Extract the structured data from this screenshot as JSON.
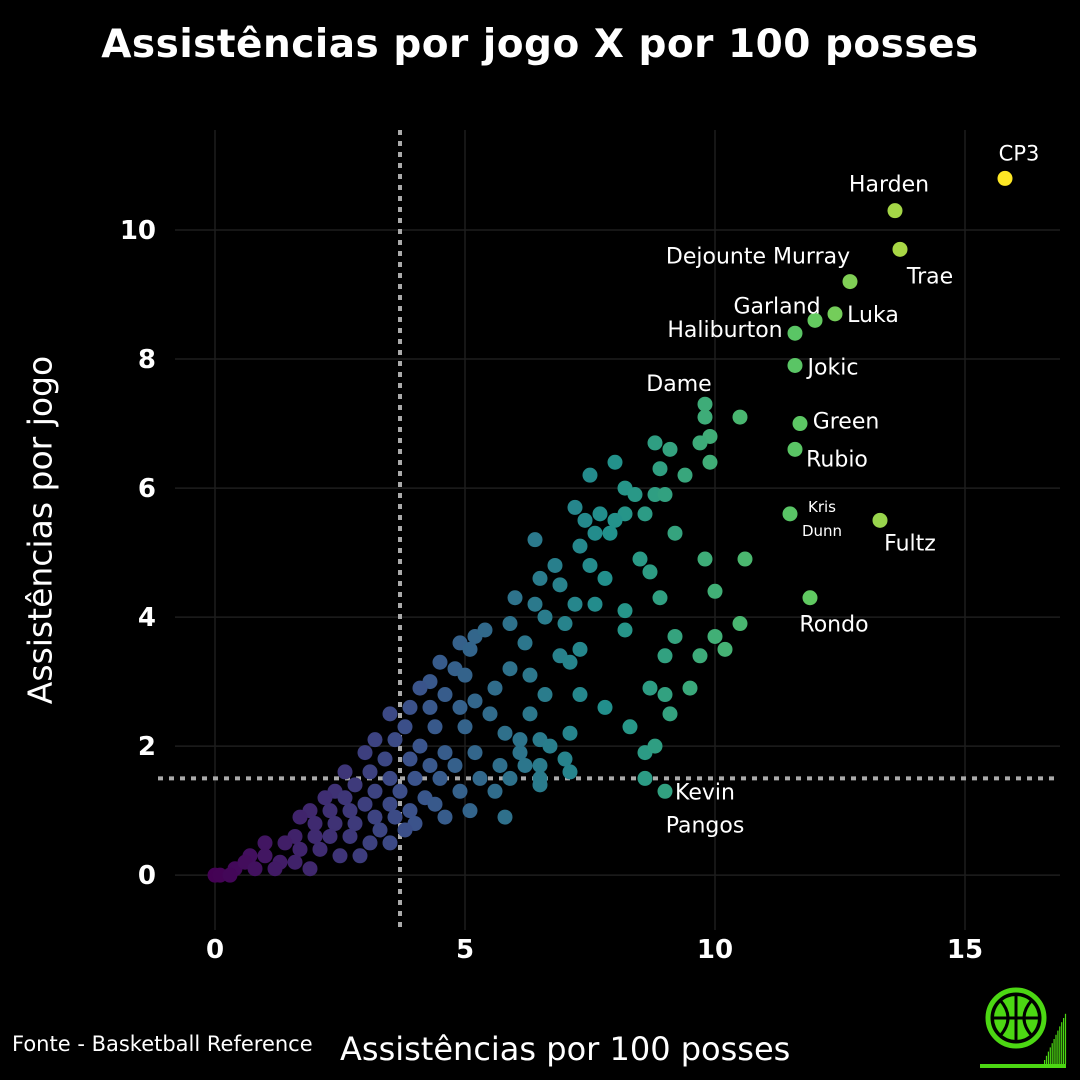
{
  "chart_data": {
    "type": "scatter",
    "title": "Assistências por jogo X por 100 posses",
    "xlabel": "Assistências por 100 posses",
    "ylabel": "Assistências por jogo",
    "xlim": [
      -0.8,
      16.9
    ],
    "ylim": [
      -0.85,
      11.55
    ],
    "x_ticks": [
      0,
      5,
      10,
      15
    ],
    "y_ticks": [
      0,
      2,
      4,
      6,
      8,
      10
    ],
    "grid": true,
    "reference_lines": {
      "x": 3.7,
      "y": 1.5
    },
    "color_scale": [
      "#440154",
      "#3b528b",
      "#21918c",
      "#5ec962",
      "#fde725"
    ],
    "labeled_points": [
      {
        "name": "CP3",
        "x": 15.8,
        "y": 10.8
      },
      {
        "name": "Harden",
        "x": 13.6,
        "y": 10.3
      },
      {
        "name": "Trae",
        "x": 13.7,
        "y": 9.7
      },
      {
        "name": "Dejounte Murray",
        "x": 12.7,
        "y": 9.2
      },
      {
        "name": "Luka",
        "x": 12.4,
        "y": 8.7
      },
      {
        "name": "Garland",
        "x": 12.0,
        "y": 8.6
      },
      {
        "name": "Haliburton",
        "x": 11.6,
        "y": 8.4
      },
      {
        "name": "Jokic",
        "x": 11.6,
        "y": 7.9
      },
      {
        "name": "Dame",
        "x": 9.8,
        "y": 7.3
      },
      {
        "name": "Green",
        "x": 11.7,
        "y": 7.0
      },
      {
        "name": "Rubio",
        "x": 11.6,
        "y": 6.6
      },
      {
        "name": "Kris Dunn",
        "x": 11.5,
        "y": 5.6
      },
      {
        "name": "Fultz",
        "x": 13.3,
        "y": 5.5
      },
      {
        "name": "Rondo",
        "x": 11.9,
        "y": 4.3
      },
      {
        "name": "Kevin Pangos",
        "x": 9.0,
        "y": 1.3
      }
    ],
    "other_points": [
      [
        9.8,
        7.1
      ],
      [
        10.5,
        7.1
      ],
      [
        9.9,
        6.8
      ],
      [
        9.7,
        6.7
      ],
      [
        8.8,
        6.7
      ],
      [
        9.1,
        6.6
      ],
      [
        8.0,
        6.4
      ],
      [
        9.9,
        6.4
      ],
      [
        8.9,
        6.3
      ],
      [
        9.4,
        6.2
      ],
      [
        7.5,
        6.2
      ],
      [
        8.2,
        6.0
      ],
      [
        8.4,
        5.9
      ],
      [
        8.8,
        5.9
      ],
      [
        9.0,
        5.9
      ],
      [
        7.2,
        5.7
      ],
      [
        7.7,
        5.6
      ],
      [
        8.2,
        5.6
      ],
      [
        8.6,
        5.6
      ],
      [
        7.4,
        5.5
      ],
      [
        8.0,
        5.5
      ],
      [
        7.9,
        5.3
      ],
      [
        7.6,
        5.3
      ],
      [
        7.3,
        5.1
      ],
      [
        6.4,
        5.2
      ],
      [
        9.2,
        5.3
      ],
      [
        6.8,
        4.8
      ],
      [
        8.5,
        4.9
      ],
      [
        7.5,
        4.8
      ],
      [
        8.7,
        4.7
      ],
      [
        9.8,
        4.9
      ],
      [
        10.6,
        4.9
      ],
      [
        6.5,
        4.6
      ],
      [
        6.9,
        4.5
      ],
      [
        7.8,
        4.6
      ],
      [
        6.0,
        4.3
      ],
      [
        6.4,
        4.2
      ],
      [
        7.2,
        4.2
      ],
      [
        7.6,
        4.2
      ],
      [
        8.2,
        4.1
      ],
      [
        8.9,
        4.3
      ],
      [
        10.0,
        4.4
      ],
      [
        5.9,
        3.9
      ],
      [
        6.6,
        4.0
      ],
      [
        7.0,
        3.9
      ],
      [
        8.2,
        3.8
      ],
      [
        5.2,
        3.7
      ],
      [
        5.4,
        3.8
      ],
      [
        4.9,
        3.6
      ],
      [
        5.1,
        3.5
      ],
      [
        6.2,
        3.6
      ],
      [
        6.9,
        3.4
      ],
      [
        7.3,
        3.5
      ],
      [
        9.2,
        3.7
      ],
      [
        10.0,
        3.7
      ],
      [
        10.2,
        3.5
      ],
      [
        10.5,
        3.9
      ],
      [
        4.5,
        3.3
      ],
      [
        4.8,
        3.2
      ],
      [
        5.0,
        3.1
      ],
      [
        5.9,
        3.2
      ],
      [
        6.3,
        3.1
      ],
      [
        7.1,
        3.3
      ],
      [
        9.0,
        3.4
      ],
      [
        9.7,
        3.4
      ],
      [
        4.3,
        3.0
      ],
      [
        4.1,
        2.9
      ],
      [
        4.6,
        2.8
      ],
      [
        5.2,
        2.7
      ],
      [
        5.6,
        2.9
      ],
      [
        6.6,
        2.8
      ],
      [
        7.3,
        2.8
      ],
      [
        8.7,
        2.9
      ],
      [
        9.0,
        2.8
      ],
      [
        9.5,
        2.9
      ],
      [
        3.9,
        2.6
      ],
      [
        4.3,
        2.6
      ],
      [
        4.9,
        2.6
      ],
      [
        5.5,
        2.5
      ],
      [
        6.3,
        2.5
      ],
      [
        7.8,
        2.6
      ],
      [
        9.1,
        2.5
      ],
      [
        3.5,
        2.5
      ],
      [
        3.8,
        2.3
      ],
      [
        4.4,
        2.3
      ],
      [
        5.0,
        2.3
      ],
      [
        5.8,
        2.2
      ],
      [
        6.1,
        2.1
      ],
      [
        6.5,
        2.1
      ],
      [
        7.1,
        2.2
      ],
      [
        8.3,
        2.3
      ],
      [
        3.2,
        2.1
      ],
      [
        3.6,
        2.1
      ],
      [
        4.1,
        2.0
      ],
      [
        4.6,
        1.9
      ],
      [
        5.2,
        1.9
      ],
      [
        6.1,
        1.9
      ],
      [
        6.7,
        2.0
      ],
      [
        7.0,
        1.8
      ],
      [
        3.0,
        1.9
      ],
      [
        3.4,
        1.8
      ],
      [
        3.9,
        1.8
      ],
      [
        4.3,
        1.7
      ],
      [
        4.8,
        1.7
      ],
      [
        5.7,
        1.7
      ],
      [
        6.2,
        1.7
      ],
      [
        6.5,
        1.7
      ],
      [
        7.1,
        1.6
      ],
      [
        8.6,
        1.9
      ],
      [
        8.8,
        2.0
      ],
      [
        2.6,
        1.6
      ],
      [
        3.1,
        1.6
      ],
      [
        3.5,
        1.5
      ],
      [
        4.0,
        1.5
      ],
      [
        4.5,
        1.5
      ],
      [
        5.3,
        1.5
      ],
      [
        5.9,
        1.5
      ],
      [
        6.5,
        1.5
      ],
      [
        8.6,
        1.5
      ],
      [
        2.4,
        1.3
      ],
      [
        2.8,
        1.4
      ],
      [
        3.2,
        1.3
      ],
      [
        3.7,
        1.3
      ],
      [
        4.2,
        1.2
      ],
      [
        4.9,
        1.3
      ],
      [
        5.6,
        1.3
      ],
      [
        6.5,
        1.4
      ],
      [
        2.2,
        1.2
      ],
      [
        2.6,
        1.2
      ],
      [
        3.0,
        1.1
      ],
      [
        3.5,
        1.1
      ],
      [
        3.9,
        1.0
      ],
      [
        4.4,
        1.1
      ],
      [
        5.1,
        1.0
      ],
      [
        5.8,
        0.9
      ],
      [
        1.9,
        1.0
      ],
      [
        2.3,
        1.0
      ],
      [
        2.7,
        1.0
      ],
      [
        3.2,
        0.9
      ],
      [
        3.6,
        0.9
      ],
      [
        4.0,
        0.8
      ],
      [
        4.6,
        0.9
      ],
      [
        1.7,
        0.9
      ],
      [
        2.0,
        0.8
      ],
      [
        2.4,
        0.8
      ],
      [
        2.8,
        0.8
      ],
      [
        3.3,
        0.7
      ],
      [
        3.8,
        0.7
      ],
      [
        1.6,
        0.6
      ],
      [
        2.0,
        0.6
      ],
      [
        2.3,
        0.6
      ],
      [
        2.7,
        0.6
      ],
      [
        3.1,
        0.5
      ],
      [
        3.5,
        0.5
      ],
      [
        1.0,
        0.5
      ],
      [
        1.4,
        0.5
      ],
      [
        1.7,
        0.4
      ],
      [
        2.1,
        0.4
      ],
      [
        2.5,
        0.3
      ],
      [
        2.9,
        0.3
      ],
      [
        0.7,
        0.3
      ],
      [
        1.0,
        0.3
      ],
      [
        1.3,
        0.2
      ],
      [
        1.6,
        0.2
      ],
      [
        1.9,
        0.1
      ],
      [
        0.4,
        0.1
      ],
      [
        0.6,
        0.2
      ],
      [
        0.8,
        0.1
      ],
      [
        1.2,
        0.1
      ],
      [
        0.0,
        0.0
      ],
      [
        0.1,
        0.0
      ],
      [
        0.3,
        0.0
      ]
    ]
  },
  "footer": {
    "source": "Fonte - Basketball Reference"
  },
  "logo": {
    "icon": "basketball-logo-icon",
    "color": "#4cd713"
  }
}
